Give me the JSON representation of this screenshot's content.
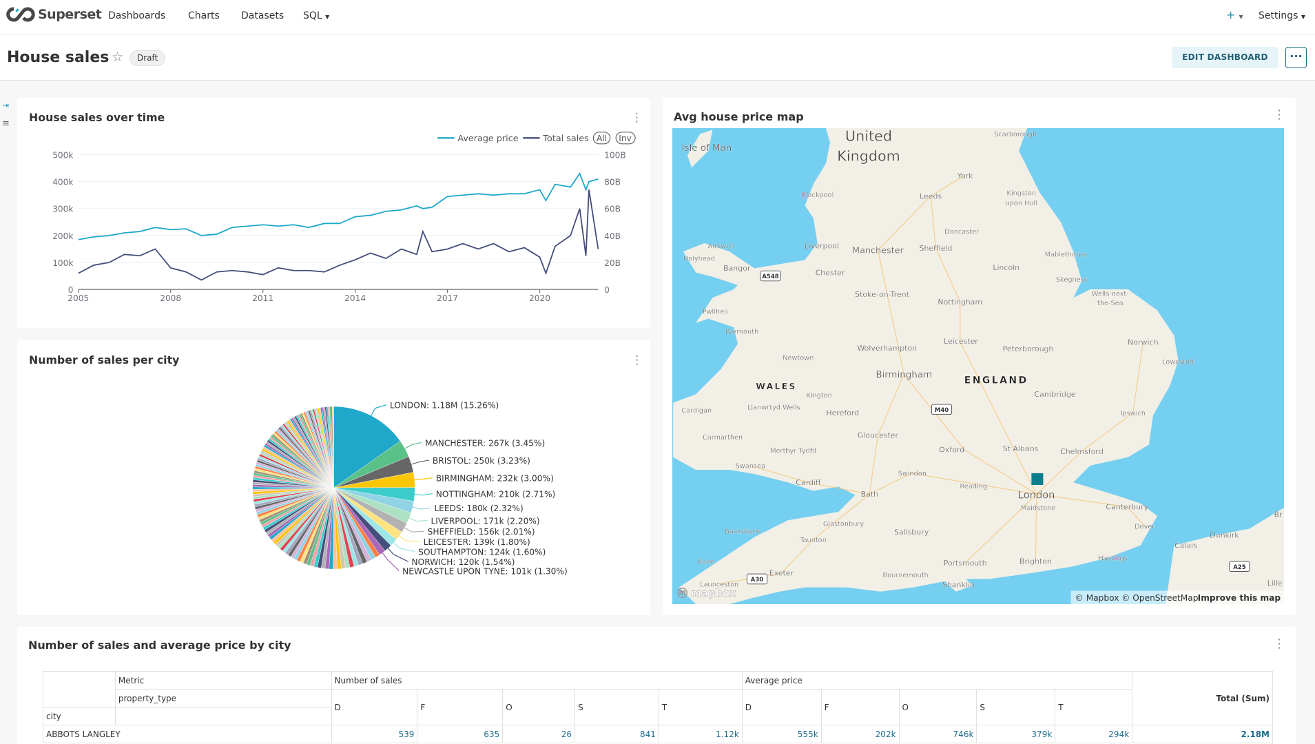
{
  "navbar": {
    "brand": "Superset",
    "items": [
      "Dashboards",
      "Charts",
      "Datasets",
      "SQL"
    ],
    "plus": "+",
    "settings": "Settings"
  },
  "header": {
    "title": "House sales",
    "badge": "Draft",
    "edit_label": "EDIT DASHBOARD",
    "more_label": "···"
  },
  "cards": {
    "line": "House sales over time",
    "pie": "Number of sales per city",
    "map": "Avg house price map",
    "table": "Number of sales and average price by city"
  },
  "colors": {
    "accent": "#1FA8C9",
    "avg_price": "#1FA8C9",
    "total_sales": "#454E7C",
    "map_marker": "#0A7E8C",
    "sea": "#75CFF0",
    "land": "#F2EFE6"
  },
  "chart_data": [
    {
      "type": "line",
      "title": "House sales over time",
      "legend": [
        "Average price",
        "Total sales"
      ],
      "legend_buttons": [
        "All",
        "Inv"
      ],
      "legend_placement": "top-right",
      "x_ticks": [
        "2005",
        "2008",
        "2011",
        "2014",
        "2017",
        "2020"
      ],
      "y_left_ticks": [
        "0",
        "100k",
        "200k",
        "300k",
        "400k",
        "500k"
      ],
      "y_left_lim": [
        0,
        500000
      ],
      "y_right_ticks": [
        "0",
        "20B",
        "40B",
        "60B",
        "80B",
        "100B"
      ],
      "y_right_lim": [
        0,
        100000000000
      ],
      "grid": true,
      "x": [
        2005,
        2005.5,
        2006,
        2006.5,
        2007,
        2007.5,
        2008,
        2008.5,
        2009,
        2009.5,
        2010,
        2010.5,
        2011,
        2011.5,
        2012,
        2012.5,
        2013,
        2013.5,
        2014,
        2014.5,
        2015,
        2015.5,
        2016,
        2016.2,
        2016.5,
        2017,
        2017.5,
        2018,
        2018.5,
        2019,
        2019.5,
        2020,
        2020.2,
        2020.5,
        2021,
        2021.3,
        2021.5,
        2021.6,
        2021.9
      ],
      "series": [
        {
          "name": "Average price",
          "axis": "left",
          "values": [
            185000,
            195000,
            200000,
            210000,
            215000,
            230000,
            222000,
            225000,
            200000,
            205000,
            230000,
            235000,
            240000,
            235000,
            240000,
            230000,
            245000,
            245000,
            270000,
            275000,
            290000,
            295000,
            310000,
            300000,
            305000,
            345000,
            350000,
            355000,
            350000,
            355000,
            355000,
            370000,
            330000,
            390000,
            380000,
            430000,
            370000,
            400000,
            410000
          ]
        },
        {
          "name": "Total sales",
          "axis": "right",
          "values": [
            12000000000.0,
            18000000000.0,
            20000000000.0,
            26000000000.0,
            25000000000.0,
            30000000000.0,
            16000000000.0,
            13000000000.0,
            7000000000.0,
            13000000000.0,
            14000000000.0,
            13000000000.0,
            11000000000.0,
            16000000000.0,
            14000000000.0,
            14000000000.0,
            13000000000.0,
            18000000000.0,
            22000000000.0,
            27000000000.0,
            23000000000.0,
            30000000000.0,
            26000000000.0,
            43000000000.0,
            28000000000.0,
            30000000000.0,
            34000000000.0,
            30000000000.0,
            34000000000.0,
            28000000000.0,
            31000000000.0,
            24000000000.0,
            12000000000.0,
            32000000000.0,
            40000000000.0,
            60000000000.0,
            25000000000.0,
            74000000000.0,
            30000000000.0
          ]
        }
      ]
    },
    {
      "type": "pie",
      "title": "Number of sales per city",
      "slices": [
        {
          "label": "LONDON: 1.18M (15.26%)",
          "name": "LONDON",
          "pct": 15.26,
          "color": "#1FA8C9"
        },
        {
          "label": "MANCHESTER: 267k (3.45%)",
          "name": "MANCHESTER",
          "pct": 3.45,
          "color": "#5AC189"
        },
        {
          "label": "BRISTOL: 250k (3.23%)",
          "name": "BRISTOL",
          "pct": 3.23,
          "color": "#666666"
        },
        {
          "label": "BIRMINGHAM: 232k (3.00%)",
          "name": "BIRMINGHAM",
          "pct": 3.0,
          "color": "#FCC700"
        },
        {
          "label": "NOTTINGHAM: 210k (2.71%)",
          "name": "NOTTINGHAM",
          "pct": 2.71,
          "color": "#3CCCCB"
        },
        {
          "label": "LEEDS: 180k (2.32%)",
          "name": "LEEDS",
          "pct": 2.32,
          "color": "#8FD3E4"
        },
        {
          "label": "LIVERPOOL: 171k (2.20%)",
          "name": "LIVERPOOL",
          "pct": 2.2,
          "color": "#ACE1C4"
        },
        {
          "label": "SHEFFIELD: 156k (2.01%)",
          "name": "SHEFFIELD",
          "pct": 2.01,
          "color": "#B2B2B2"
        },
        {
          "label": "LEICESTER: 139k (1.80%)",
          "name": "LEICESTER",
          "pct": 1.8,
          "color": "#FDE380"
        },
        {
          "label": "SOUTHAMPTON: 124k (1.60%)",
          "name": "SOUTHAMPTON",
          "pct": 1.6,
          "color": "#9EE5E5"
        },
        {
          "label": "NORWICH: 120k (1.54%)",
          "name": "NORWICH",
          "pct": 1.54,
          "color": "#454E7C"
        },
        {
          "label": "NEWCASTLE UPON TYNE: 101k (1.30%)",
          "name": "NEWCASTLE UPON TYNE",
          "pct": 1.3,
          "color": "#A868B7"
        }
      ],
      "palette": [
        "#1FA8C9",
        "#454E7C",
        "#5AC189",
        "#FF7F44",
        "#666666",
        "#E04355",
        "#FCC700",
        "#A868B7",
        "#3CCCCB",
        "#A38F79",
        "#8FD3E4",
        "#A1A6BD",
        "#ACE1C4",
        "#FEC0A1",
        "#B2B2B2",
        "#EFA1AA",
        "#FDE380",
        "#D3B3DA",
        "#9EE5E5",
        "#D1C6BC"
      ]
    }
  ],
  "map": {
    "labels": [
      "Isle of Man",
      "United",
      "Kingdom",
      "Scarborough",
      "York",
      "Kingston",
      "upon Hull",
      "Leeds",
      "Blackpool",
      "Doncaster",
      "Liverpool",
      "Manchester",
      "Sheffield",
      "Mablethorpe",
      "Amlwch",
      "Holyhead",
      "Bangor",
      "Chester",
      "Lincoln",
      "Skegness",
      "Wells-next-",
      "the-Sea",
      "Stoke-on-Trent",
      "Nottingham",
      "Pwllheli",
      "Barmouth",
      "Leicester",
      "Peterborough",
      "Norwich",
      "Wolverhampton",
      "Newtown",
      "Lowestoft",
      "Birmingham",
      "ENGLAND",
      "WALES",
      "Kington",
      "Cambridge",
      "Llanwrtyd Wells",
      "Cardigan",
      "Hereford",
      "Ipswich",
      "Carmarthen",
      "Gloucester",
      "Oxford",
      "St Albans",
      "Chelmsford",
      "Merthyr Tydfil",
      "Swansea",
      "Swindon",
      "Cardiff",
      "Reading",
      "London",
      "Bath",
      "Maidstone",
      "Canterbury",
      "Dover",
      "Glastonbury",
      "Salisbury",
      "Barnstaple",
      "Taunton",
      "Dunkirk",
      "Calais",
      "Bude",
      "Portsmouth",
      "Brighton",
      "Hastings",
      "Exeter",
      "Launceston",
      "Bournemouth",
      "Shanklin",
      "Lille",
      "Br"
    ],
    "road_shields": [
      "A548",
      "M40",
      "A25",
      "A30"
    ],
    "logo": "mapbox",
    "attribution": "© Mapbox © OpenStreetMap",
    "improve": "Improve this map"
  },
  "table": {
    "metric_label": "Metric",
    "property_type_label": "property_type",
    "city_label": "city",
    "metric_groups": [
      "Number of sales",
      "Average price"
    ],
    "property_types": [
      "D",
      "F",
      "O",
      "S",
      "T"
    ],
    "total_label": "Total (Sum)",
    "rows": [
      {
        "city": "ABBOTS LANGLEY",
        "values": [
          "539",
          "635",
          "26",
          "841",
          "1.12k",
          "555k",
          "202k",
          "746k",
          "379k",
          "294k"
        ],
        "total": "2.18M"
      }
    ]
  }
}
